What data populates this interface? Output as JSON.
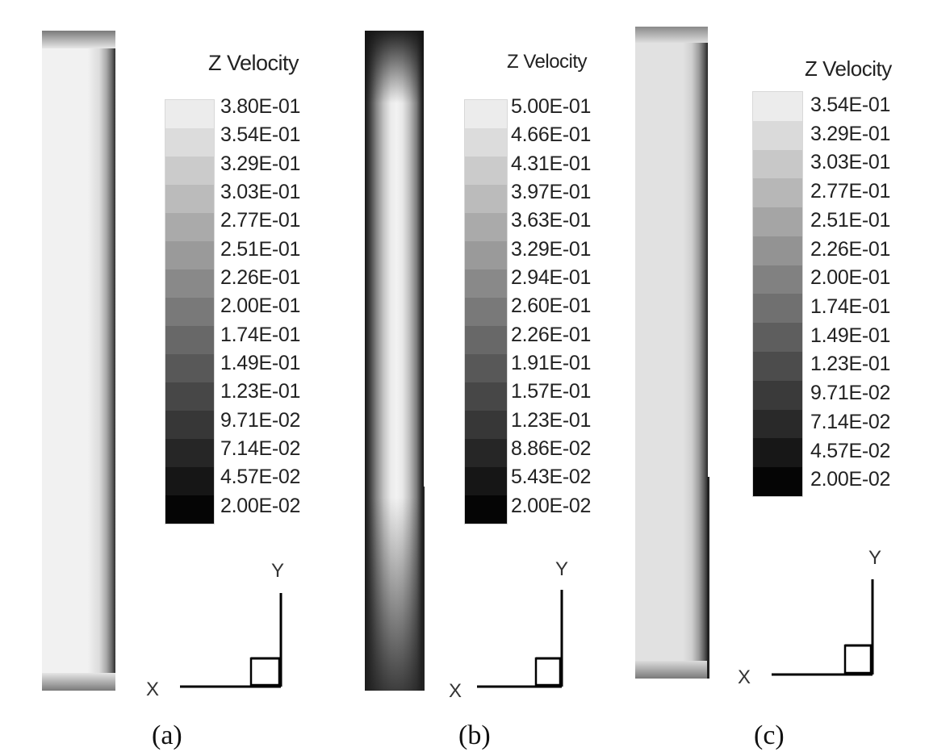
{
  "panels": [
    {
      "caption": "(a)",
      "legend_title": "Z Velocity",
      "legend_ticks": [
        "3.80E-01",
        "3.54E-01",
        "3.29E-01",
        "3.03E-01",
        "2.77E-01",
        "2.51E-01",
        "2.26E-01",
        "2.00E-01",
        "1.74E-01",
        "1.49E-01",
        "1.23E-01",
        "9.71E-02",
        "7.14E-02",
        "4.57E-02",
        "2.00E-02"
      ],
      "axis_x": "X",
      "axis_y": "Y"
    },
    {
      "caption": "(b)",
      "legend_title": "Z Velocity",
      "legend_ticks": [
        "5.00E-01",
        "4.66E-01",
        "4.31E-01",
        "3.97E-01",
        "3.63E-01",
        "3.29E-01",
        "2.94E-01",
        "2.60E-01",
        "2.26E-01",
        "1.91E-01",
        "1.57E-01",
        "1.23E-01",
        "8.86E-02",
        "5.43E-02",
        "2.00E-02"
      ],
      "axis_x": "X",
      "axis_y": "Y"
    },
    {
      "caption": "(c)",
      "legend_title": "Z Velocity",
      "legend_ticks": [
        "3.54E-01",
        "3.29E-01",
        "3.03E-01",
        "2.77E-01",
        "2.51E-01",
        "2.26E-01",
        "2.00E-01",
        "1.74E-01",
        "1.49E-01",
        "1.23E-01",
        "9.71E-02",
        "7.14E-02",
        "4.57E-02",
        "2.00E-02"
      ],
      "axis_x": "X",
      "axis_y": "Y"
    }
  ],
  "colors": {
    "scale_light": "#ececec",
    "scale_dark": "#050505",
    "field_a": "#f1f1f1",
    "field_b_center": "#f1f1f1",
    "field_b_wall": "#1c1c1c",
    "field_c": "#e1e1e1"
  }
}
